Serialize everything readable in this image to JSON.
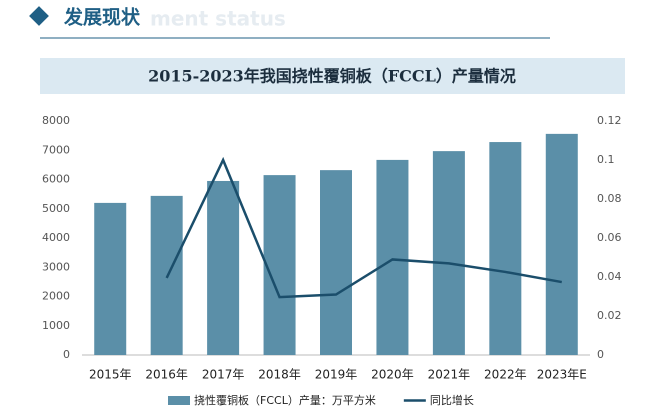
{
  "header": {
    "title": "发展现状",
    "watermark": "ment status"
  },
  "chart_data": {
    "type": "bar",
    "title": "2015-2023年我国挠性覆铜板（FCCL）产量情况",
    "categories": [
      "2015年",
      "2016年",
      "2017年",
      "2018年",
      "2019年",
      "2020年",
      "2021年",
      "2022年",
      "2023年E"
    ],
    "series": [
      {
        "name": "挠性覆铜板（FCCL）产量：万平方米",
        "type": "bar",
        "color": "#5b8fa8",
        "values": [
          5200,
          5440,
          5950,
          6150,
          6320,
          6670,
          6970,
          7280,
          7560
        ]
      },
      {
        "name": "同比增长",
        "type": "line",
        "axis": "y2",
        "color": "#1b4e6b",
        "values": [
          null,
          0.0395,
          0.1,
          0.0297,
          0.031,
          0.049,
          0.047,
          0.0426,
          0.0374
        ]
      }
    ],
    "ylim": [
      0,
      8000
    ],
    "yticks": [
      0,
      1000,
      2000,
      3000,
      4000,
      5000,
      6000,
      7000,
      8000
    ],
    "y2lim": [
      0,
      0.12
    ],
    "y2ticks": [
      0,
      0.02,
      0.04,
      0.06,
      0.08,
      0.1,
      0.12
    ],
    "legend": "bottom"
  }
}
